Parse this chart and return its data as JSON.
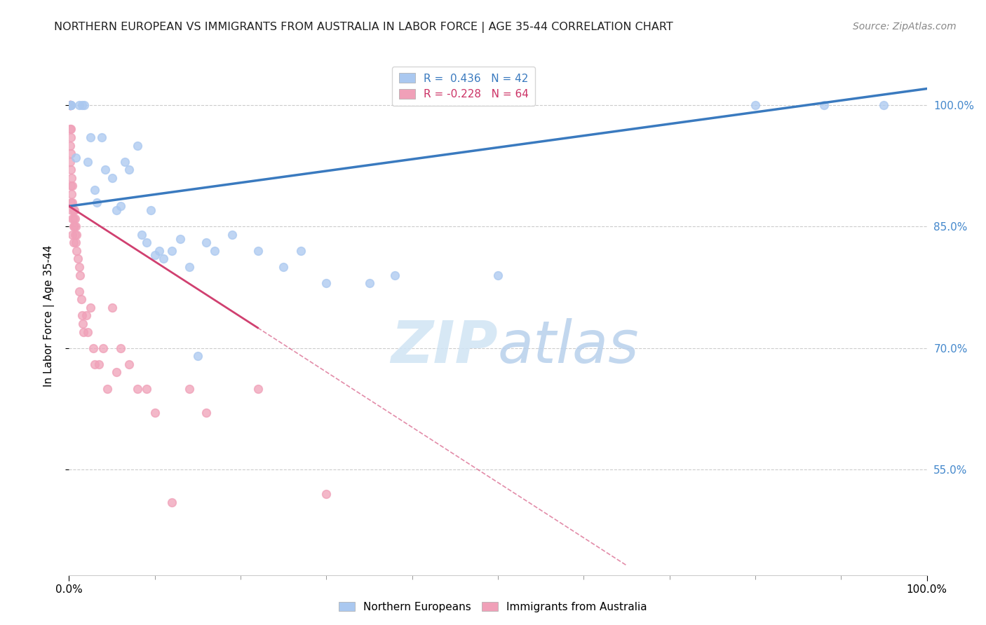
{
  "title": "NORTHERN EUROPEAN VS IMMIGRANTS FROM AUSTRALIA IN LABOR FORCE | AGE 35-44 CORRELATION CHART",
  "source": "Source: ZipAtlas.com",
  "ylabel": "In Labor Force | Age 35-44",
  "xlim": [
    0.0,
    1.0
  ],
  "ylim": [
    0.42,
    1.06
  ],
  "yticks": [
    0.55,
    0.7,
    0.85,
    1.0
  ],
  "ytick_labels": [
    "55.0%",
    "70.0%",
    "85.0%",
    "100.0%"
  ],
  "xticks": [
    0.0,
    1.0
  ],
  "xtick_labels": [
    "0.0%",
    "100.0%"
  ],
  "blue_color": "#aac8f0",
  "blue_line_color": "#3a7abf",
  "pink_color": "#f0a0b8",
  "pink_line_color": "#d04070",
  "grid_color": "#cccccc",
  "watermark_zip": "ZIP",
  "watermark_atlas": "atlas",
  "legend_R_blue": " 0.436",
  "legend_N_blue": "42",
  "legend_R_pink": "-0.228",
  "legend_N_pink": "64",
  "blue_x": [
    0.002,
    0.002,
    0.002,
    0.008,
    0.012,
    0.015,
    0.018,
    0.022,
    0.025,
    0.03,
    0.032,
    0.038,
    0.042,
    0.05,
    0.055,
    0.06,
    0.065,
    0.07,
    0.08,
    0.085,
    0.09,
    0.095,
    0.1,
    0.105,
    0.11,
    0.12,
    0.13,
    0.14,
    0.15,
    0.16,
    0.17,
    0.19,
    0.22,
    0.25,
    0.27,
    0.3,
    0.35,
    0.38,
    0.5,
    0.8,
    0.88,
    0.95
  ],
  "blue_y": [
    1.0,
    1.0,
    1.0,
    0.935,
    1.0,
    1.0,
    1.0,
    0.93,
    0.96,
    0.895,
    0.88,
    0.96,
    0.92,
    0.91,
    0.87,
    0.875,
    0.93,
    0.92,
    0.95,
    0.84,
    0.83,
    0.87,
    0.815,
    0.82,
    0.81,
    0.82,
    0.835,
    0.8,
    0.69,
    0.83,
    0.82,
    0.84,
    0.82,
    0.8,
    0.82,
    0.78,
    0.78,
    0.79,
    0.79,
    1.0,
    1.0,
    1.0
  ],
  "pink_x": [
    0.001,
    0.001,
    0.001,
    0.001,
    0.001,
    0.001,
    0.001,
    0.001,
    0.001,
    0.001,
    0.001,
    0.002,
    0.002,
    0.002,
    0.002,
    0.002,
    0.002,
    0.003,
    0.003,
    0.003,
    0.004,
    0.004,
    0.004,
    0.004,
    0.005,
    0.005,
    0.005,
    0.005,
    0.006,
    0.006,
    0.007,
    0.007,
    0.008,
    0.008,
    0.009,
    0.009,
    0.01,
    0.012,
    0.012,
    0.013,
    0.014,
    0.015,
    0.016,
    0.017,
    0.02,
    0.022,
    0.025,
    0.028,
    0.03,
    0.035,
    0.04,
    0.045,
    0.05,
    0.055,
    0.06,
    0.07,
    0.08,
    0.09,
    0.1,
    0.12,
    0.14,
    0.16,
    0.22,
    0.3
  ],
  "pink_y": [
    1.0,
    1.0,
    1.0,
    1.0,
    1.0,
    1.0,
    1.0,
    1.0,
    0.97,
    0.95,
    0.93,
    0.97,
    0.96,
    0.94,
    0.92,
    0.9,
    0.88,
    0.91,
    0.89,
    0.87,
    0.9,
    0.88,
    0.86,
    0.84,
    0.87,
    0.86,
    0.85,
    0.83,
    0.87,
    0.85,
    0.86,
    0.84,
    0.85,
    0.83,
    0.84,
    0.82,
    0.81,
    0.8,
    0.77,
    0.79,
    0.76,
    0.74,
    0.73,
    0.72,
    0.74,
    0.72,
    0.75,
    0.7,
    0.68,
    0.68,
    0.7,
    0.65,
    0.75,
    0.67,
    0.7,
    0.68,
    0.65,
    0.65,
    0.62,
    0.51,
    0.65,
    0.62,
    0.65,
    0.52
  ],
  "title_fontsize": 11.5,
  "source_fontsize": 10,
  "tick_fontsize": 11,
  "ylabel_fontsize": 11,
  "legend_fontsize": 11,
  "marker_size": 70
}
